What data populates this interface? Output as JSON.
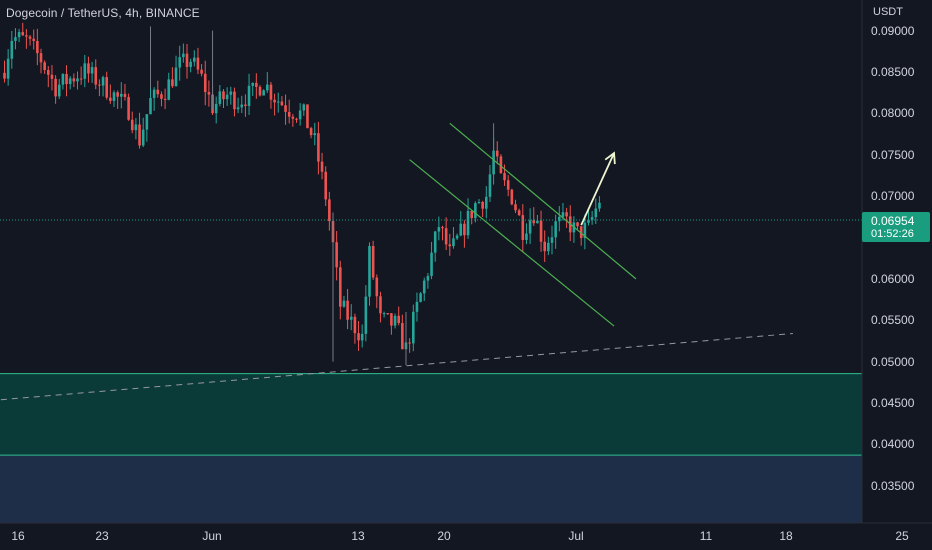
{
  "header": {
    "title": "Dogecoin / TetherUS, 4h, BINANCE"
  },
  "price_axis": {
    "unit": "USDT"
  },
  "last_price": {
    "value": "0.06954",
    "countdown": "01:52:26",
    "color": "#1a9d7e"
  },
  "colors": {
    "up": "#26a69a",
    "down": "#ef5350",
    "background": "#131722",
    "channel": "#4caf50"
  },
  "chart_data": {
    "type": "candlestick",
    "ylim": [
      0.0305,
      0.0937
    ],
    "y_ticks": [
      0.09,
      0.085,
      0.08,
      0.075,
      0.07,
      0.065,
      0.06,
      0.055,
      0.05,
      0.045,
      0.04,
      0.035
    ],
    "y_tick_labels": [
      "0.09000",
      "0.08500",
      "0.08000",
      "0.07500",
      "0.07000",
      "0.06500",
      "0.06000",
      "0.05500",
      "0.05000",
      "0.04500",
      "0.04000",
      "0.03500"
    ],
    "x_tick_labels": [
      "16",
      "23",
      "Jun",
      "13",
      "20",
      "Jul",
      "11",
      "18",
      "25"
    ],
    "close_path": [
      {
        "t": 0,
        "p": 0.0855
      },
      {
        "t": 2,
        "p": 0.0892
      },
      {
        "t": 6,
        "p": 0.0888
      },
      {
        "t": 10,
        "p": 0.0865
      },
      {
        "t": 14,
        "p": 0.0832
      },
      {
        "t": 18,
        "p": 0.0842
      },
      {
        "t": 22,
        "p": 0.0851
      },
      {
        "t": 26,
        "p": 0.0838
      },
      {
        "t": 30,
        "p": 0.0822
      },
      {
        "t": 34,
        "p": 0.0805
      },
      {
        "t": 37,
        "p": 0.0768
      },
      {
        "t": 40,
        "p": 0.0815
      },
      {
        "t": 44,
        "p": 0.0828
      },
      {
        "t": 48,
        "p": 0.0858
      },
      {
        "t": 51,
        "p": 0.0865
      },
      {
        "t": 54,
        "p": 0.0842
      },
      {
        "t": 57,
        "p": 0.0808
      },
      {
        "t": 61,
        "p": 0.0822
      },
      {
        "t": 64,
        "p": 0.0815
      },
      {
        "t": 68,
        "p": 0.0825
      },
      {
        "t": 71,
        "p": 0.0838
      },
      {
        "t": 74,
        "p": 0.082
      },
      {
        "t": 78,
        "p": 0.0805
      },
      {
        "t": 82,
        "p": 0.0798
      },
      {
        "t": 85,
        "p": 0.0765
      },
      {
        "t": 88,
        "p": 0.07
      },
      {
        "t": 90,
        "p": 0.064
      },
      {
        "t": 92,
        "p": 0.0568
      },
      {
        "t": 95,
        "p": 0.0548
      },
      {
        "t": 98,
        "p": 0.053
      },
      {
        "t": 100,
        "p": 0.063
      },
      {
        "t": 103,
        "p": 0.055
      },
      {
        "t": 107,
        "p": 0.0545
      },
      {
        "t": 110,
        "p": 0.0515
      },
      {
        "t": 113,
        "p": 0.0565
      },
      {
        "t": 116,
        "p": 0.061
      },
      {
        "t": 119,
        "p": 0.0665
      },
      {
        "t": 122,
        "p": 0.063
      },
      {
        "t": 125,
        "p": 0.0655
      },
      {
        "t": 129,
        "p": 0.069
      },
      {
        "t": 132,
        "p": 0.07
      },
      {
        "t": 134,
        "p": 0.0752
      },
      {
        "t": 136,
        "p": 0.072
      },
      {
        "t": 139,
        "p": 0.07
      },
      {
        "t": 142,
        "p": 0.066
      },
      {
        "t": 145,
        "p": 0.068
      },
      {
        "t": 148,
        "p": 0.064
      },
      {
        "t": 151,
        "p": 0.0665
      },
      {
        "t": 154,
        "p": 0.067
      },
      {
        "t": 157,
        "p": 0.0655
      },
      {
        "t": 160,
        "p": 0.0662
      },
      {
        "t": 163,
        "p": 0.0695
      }
    ],
    "descending_channel": {
      "upper": [
        {
          "t": 122,
          "p": 0.0788
        },
        {
          "t": 173,
          "p": 0.06
        }
      ],
      "lower": [
        {
          "t": 111,
          "p": 0.0744
        },
        {
          "t": 167,
          "p": 0.0543
        }
      ]
    },
    "projection_arrow": {
      "from": {
        "t": 158,
        "p": 0.0665
      },
      "to": {
        "t": 167,
        "p": 0.0752
      }
    },
    "support_trendline": [
      {
        "t": -1,
        "p": 0.0454
      },
      {
        "t": 216,
        "p": 0.0534
      }
    ],
    "zone_upper": {
      "top": 0.04855,
      "bottom": 0.0387,
      "color": "#0b3b39"
    },
    "zone_lower": {
      "top": 0.0387,
      "bottom": 0.0305,
      "color": "#1e2e48"
    }
  }
}
